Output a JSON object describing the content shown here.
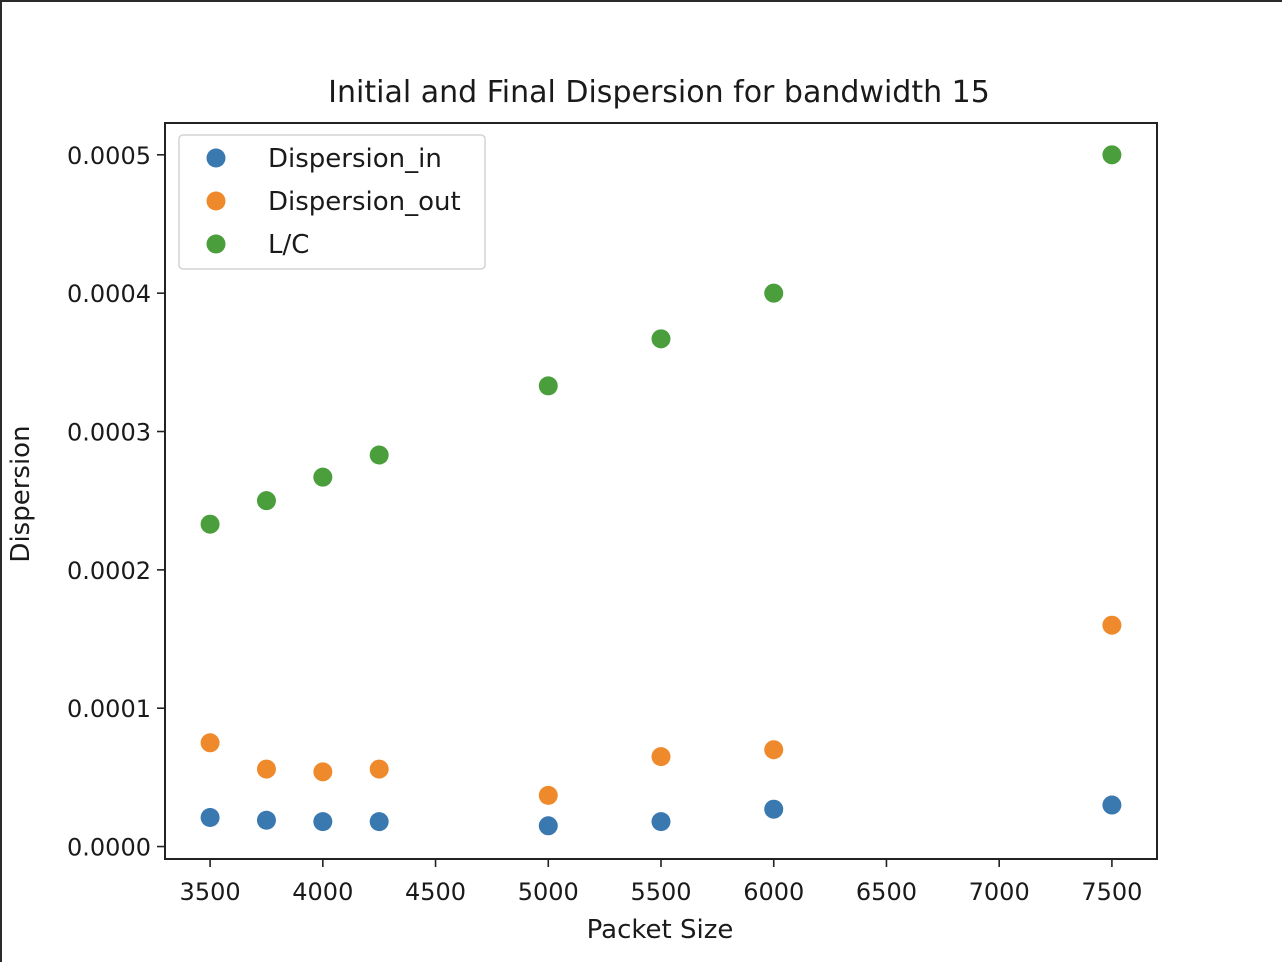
{
  "chart_data": {
    "type": "scatter",
    "title": "Initial and Final Dispersion for bandwidth 15",
    "xlabel": "Packet Size",
    "ylabel": "Dispersion",
    "xlim": [
      3300,
      7700
    ],
    "ylim": [
      -9e-06,
      0.000523
    ],
    "xticks": [
      3500,
      4000,
      4500,
      5000,
      5500,
      6000,
      6500,
      7000,
      7500
    ],
    "xtick_labels": [
      "3500",
      "4000",
      "4500",
      "5000",
      "5500",
      "6000",
      "6500",
      "7000",
      "7500"
    ],
    "yticks": [
      0,
      0.0001,
      0.0002,
      0.0003,
      0.0004,
      0.0005
    ],
    "ytick_labels": [
      "0.0000",
      "0.0001",
      "0.0002",
      "0.0003",
      "0.0004",
      "0.0005"
    ],
    "grid": false,
    "legend_position": "top-left",
    "x": [
      3500,
      3750,
      4000,
      4250,
      5000,
      5500,
      6000,
      7500
    ],
    "series": [
      {
        "name": "Dispersion_in",
        "color": "#3a78b0",
        "values": [
          2.1e-05,
          1.9e-05,
          1.8e-05,
          1.8e-05,
          1.5e-05,
          1.8e-05,
          2.7e-05,
          3e-05
        ]
      },
      {
        "name": "Dispersion_out",
        "color": "#ef8a2c",
        "values": [
          7.5e-05,
          5.6e-05,
          5.4e-05,
          5.6e-05,
          3.7e-05,
          6.5e-05,
          7e-05,
          0.00016
        ]
      },
      {
        "name": "L/C",
        "color": "#4a9e3c",
        "values": [
          0.000233,
          0.00025,
          0.000267,
          0.000283,
          0.000333,
          0.000367,
          0.0004,
          0.0005
        ]
      }
    ]
  }
}
